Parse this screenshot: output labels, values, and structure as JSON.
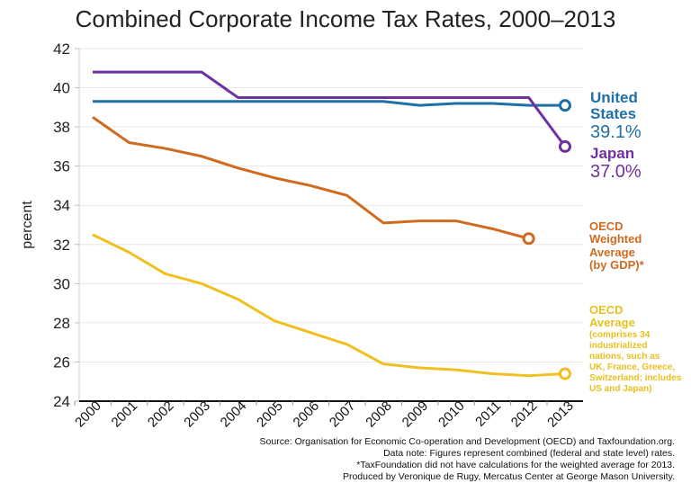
{
  "chart_data": {
    "type": "line",
    "title": "Combined Corporate Income Tax Rates, 2000–2013",
    "ylabel": "percent",
    "xlabel": "",
    "ylim": [
      24,
      42
    ],
    "yticks": [
      "24",
      "26",
      "28",
      "30",
      "32",
      "34",
      "36",
      "38",
      "40",
      "42"
    ],
    "categories": [
      "2000",
      "2001",
      "2002",
      "2003",
      "2004",
      "2005",
      "2006",
      "2007",
      "2008",
      "2009",
      "2010",
      "2011",
      "2012",
      "2013"
    ],
    "grid": true,
    "series": [
      {
        "name": "Japan",
        "value_label": "37.0%",
        "color": "#7030a0",
        "values": [
          40.8,
          40.8,
          40.8,
          40.8,
          39.5,
          39.5,
          39.5,
          39.5,
          39.5,
          39.5,
          39.5,
          39.5,
          39.5,
          37.0
        ]
      },
      {
        "name": "United States",
        "value_label": "39.1%",
        "color": "#1f6fa8",
        "values": [
          39.3,
          39.3,
          39.3,
          39.3,
          39.3,
          39.3,
          39.3,
          39.3,
          39.3,
          39.1,
          39.2,
          39.2,
          39.1,
          39.1
        ]
      },
      {
        "name": "OECD Weighted Average (by GDP)*",
        "color": "#d06a1f",
        "values": [
          38.5,
          37.2,
          36.9,
          36.5,
          35.9,
          35.4,
          35.0,
          34.5,
          33.1,
          33.2,
          33.2,
          32.8,
          32.3,
          null
        ]
      },
      {
        "name": "OECD Average",
        "note": "(comprises 34 industrialized nations, such as UK, France, Greece, Switzerland; includes US and Japan)",
        "color": "#f0c020",
        "values": [
          32.5,
          31.6,
          30.5,
          30.0,
          29.2,
          28.1,
          27.5,
          26.9,
          25.9,
          25.7,
          25.6,
          25.4,
          25.3,
          25.4
        ]
      }
    ],
    "legend": "right (direct labels)"
  },
  "labels": {
    "us_lines": [
      "United",
      "States"
    ],
    "japan": "Japan",
    "wavg_lines": [
      "OECD",
      "Weighted",
      "Average",
      "(by GDP)*"
    ],
    "avg_lines": [
      "OECD",
      "Average"
    ],
    "avg_note_lines": [
      "(comprises 34",
      "industrialized",
      "nations, such as",
      "UK, France, Greece,",
      "Switzerland; includes",
      "US and Japan)"
    ]
  },
  "source": [
    "Source: Organisation for Economic Co-operation and Development (OECD) and Taxfoundation.org.",
    "Data note: Figures represent combined (federal and state level) rates.",
    "*TaxFoundation did not have calculations for the weighted average for 2013.",
    "Produced by Veronique de Rugy, Mercatus Center at George Mason University."
  ]
}
